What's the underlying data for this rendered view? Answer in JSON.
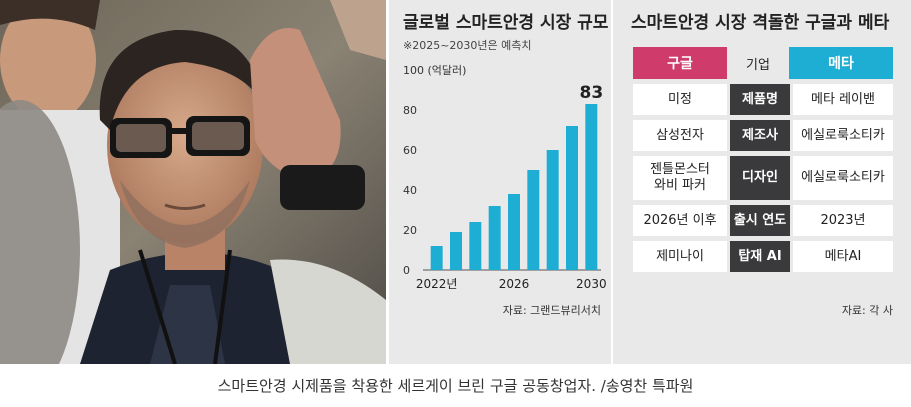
{
  "bar_chart": {
    "title": "글로벌 스마트안경 시장 규모",
    "note": "※2025~2030년은 예측치",
    "source": "자료: 그랜드뷰리서치"
  },
  "chart_data": {
    "type": "bar",
    "title": "글로벌 스마트안경 시장 규모",
    "ylabel": "100 (억달러)",
    "categories": [
      "2022년",
      "2023",
      "2024",
      "2025",
      "2026",
      "2027",
      "2028",
      "2029",
      "2030"
    ],
    "x_tick_labels": [
      "2022년",
      "2026",
      "2030"
    ],
    "values": [
      12,
      19,
      24,
      32,
      38,
      50,
      60,
      72,
      83
    ],
    "value_labels": [
      {
        "category": "2030",
        "text": "83"
      }
    ],
    "y_ticks": [
      0,
      20,
      40,
      60,
      80
    ],
    "y_top_label": "100 (억달러)",
    "ylim": [
      0,
      100
    ],
    "grid": false,
    "bar_color": "#1eaed3"
  },
  "comparison": {
    "title": "스마트안경 시장 격돌한 구글과 메타",
    "header": {
      "google": "구글",
      "company": "기업",
      "meta": "메타"
    },
    "rows": [
      {
        "google": "미정",
        "key": "제품명",
        "meta": "메타 레이밴"
      },
      {
        "google": "삼성전자",
        "key": "제조사",
        "meta": "에실로룩소티카"
      },
      {
        "google": "젠틀몬스터\n와비 파커",
        "key": "디자인",
        "meta": "에실로룩소티카"
      },
      {
        "google": "2026년 이후",
        "key": "출시 연도",
        "meta": "2023년"
      },
      {
        "google": "제미나이",
        "key": "탑재 AI",
        "meta": "메타AI"
      }
    ],
    "source": "자료: 각 사"
  },
  "caption": "스마트안경 시제품을 착용한 세르게이 브린 구글 공동창업자. /송영찬 특파원",
  "colors": {
    "google": "#cf3c6c",
    "meta": "#1eaed3",
    "key": "#3a3a3c",
    "panel": "#e9e9ea"
  }
}
